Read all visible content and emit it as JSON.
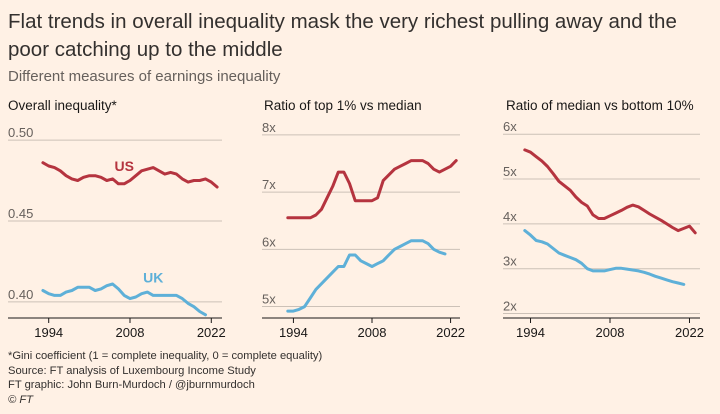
{
  "header": {
    "title": "Flat trends in overall inequality mask the very richest pulling away and the poor catching up to the middle",
    "subtitle": "Different measures of earnings inequality"
  },
  "colors": {
    "background": "#fff1e5",
    "us": "#b5343f",
    "uk": "#5eb0d8",
    "grid": "#ccc1b7",
    "tick_text": "#66605c"
  },
  "chart_data": [
    {
      "type": "line",
      "title": "Overall inequality*",
      "x_ticks": [
        1994,
        2008,
        2022
      ],
      "y_ticks": [
        "0.40",
        "0.45",
        "0.50"
      ],
      "y_tick_values": [
        0.4,
        0.45,
        0.5
      ],
      "ylim": [
        0.39,
        0.505
      ],
      "xlim": [
        1992.5,
        2023.5
      ],
      "series": [
        {
          "name": "US",
          "x": [
            1993,
            1994,
            1995,
            1996,
            1997,
            1998,
            1999,
            2000,
            2001,
            2002,
            2003,
            2004,
            2005,
            2006,
            2007,
            2008,
            2009,
            2010,
            2011,
            2012,
            2013,
            2014,
            2015,
            2016,
            2017,
            2018,
            2019,
            2020,
            2021,
            2022,
            2023
          ],
          "values": [
            0.486,
            0.484,
            0.483,
            0.481,
            0.478,
            0.476,
            0.475,
            0.477,
            0.478,
            0.478,
            0.477,
            0.475,
            0.476,
            0.473,
            0.473,
            0.475,
            0.478,
            0.481,
            0.482,
            0.483,
            0.481,
            0.479,
            0.48,
            0.479,
            0.476,
            0.474,
            0.475,
            0.475,
            0.476,
            0.474,
            0.471
          ]
        },
        {
          "name": "UK",
          "x": [
            1993,
            1994,
            1995,
            1996,
            1997,
            1998,
            1999,
            2000,
            2001,
            2002,
            2003,
            2004,
            2005,
            2006,
            2007,
            2008,
            2009,
            2010,
            2011,
            2012,
            2013,
            2014,
            2015,
            2016,
            2017,
            2018,
            2019,
            2020,
            2021
          ],
          "values": [
            0.407,
            0.405,
            0.404,
            0.404,
            0.406,
            0.407,
            0.409,
            0.409,
            0.409,
            0.407,
            0.408,
            0.41,
            0.411,
            0.408,
            0.404,
            0.402,
            0.403,
            0.405,
            0.406,
            0.404,
            0.404,
            0.404,
            0.404,
            0.404,
            0.402,
            0.399,
            0.397,
            0.394,
            0.392
          ]
        }
      ],
      "annotations": [
        {
          "text": "US",
          "series": "US",
          "x": 2007,
          "y": 0.481
        },
        {
          "text": "UK",
          "series": "UK",
          "x": 2012,
          "y": 0.412
        }
      ]
    },
    {
      "type": "line",
      "title": "Ratio of top 1% vs median",
      "x_ticks": [
        1994,
        2008,
        2022
      ],
      "y_ticks": [
        "5x",
        "6x",
        "7x",
        "8x"
      ],
      "y_tick_values": [
        5,
        6,
        7,
        8
      ],
      "ylim": [
        4.8,
        8.05
      ],
      "xlim": [
        1992.5,
        2023.5
      ],
      "series": [
        {
          "name": "US",
          "x": [
            1993,
            1994,
            1995,
            1996,
            1997,
            1998,
            1999,
            2000,
            2001,
            2002,
            2003,
            2004,
            2005,
            2006,
            2007,
            2008,
            2009,
            2010,
            2011,
            2012,
            2013,
            2014,
            2015,
            2016,
            2017,
            2018,
            2019,
            2020,
            2021,
            2022,
            2023
          ],
          "values": [
            6.55,
            6.55,
            6.55,
            6.55,
            6.55,
            6.6,
            6.7,
            6.9,
            7.1,
            7.35,
            7.35,
            7.15,
            6.85,
            6.85,
            6.85,
            6.85,
            6.9,
            7.2,
            7.3,
            7.4,
            7.45,
            7.5,
            7.55,
            7.55,
            7.55,
            7.5,
            7.4,
            7.35,
            7.4,
            7.45,
            7.55
          ]
        },
        {
          "name": "UK",
          "x": [
            1993,
            1994,
            1995,
            1996,
            1997,
            1998,
            1999,
            2000,
            2001,
            2002,
            2003,
            2004,
            2005,
            2006,
            2007,
            2008,
            2009,
            2010,
            2011,
            2012,
            2013,
            2014,
            2015,
            2016,
            2017,
            2018,
            2019,
            2020,
            2021
          ],
          "values": [
            4.92,
            4.92,
            4.95,
            5.0,
            5.15,
            5.3,
            5.4,
            5.5,
            5.6,
            5.7,
            5.7,
            5.9,
            5.9,
            5.8,
            5.75,
            5.7,
            5.75,
            5.8,
            5.9,
            6.0,
            6.05,
            6.1,
            6.15,
            6.15,
            6.15,
            6.1,
            6.0,
            5.95,
            5.92
          ]
        }
      ]
    },
    {
      "type": "line",
      "title": "Ratio of median vs bottom 10%",
      "x_ticks": [
        1994,
        2008,
        2022
      ],
      "y_ticks": [
        "2x",
        "3x",
        "4x",
        "5x",
        "6x"
      ],
      "y_tick_values": [
        2,
        3,
        4,
        5,
        6
      ],
      "ylim": [
        1.9,
        6.05
      ],
      "xlim": [
        1992.5,
        2023.5
      ],
      "series": [
        {
          "name": "US",
          "x": [
            1993,
            1994,
            1995,
            1996,
            1997,
            1998,
            1999,
            2000,
            2001,
            2002,
            2003,
            2004,
            2005,
            2006,
            2007,
            2008,
            2009,
            2010,
            2011,
            2012,
            2013,
            2014,
            2015,
            2016,
            2017,
            2018,
            2019,
            2020,
            2021,
            2022,
            2023
          ],
          "values": [
            5.65,
            5.6,
            5.5,
            5.4,
            5.28,
            5.12,
            4.95,
            4.85,
            4.75,
            4.6,
            4.48,
            4.4,
            4.2,
            4.12,
            4.12,
            4.18,
            4.24,
            4.3,
            4.37,
            4.42,
            4.38,
            4.3,
            4.22,
            4.15,
            4.08,
            4.0,
            3.92,
            3.85,
            3.9,
            3.95,
            3.8
          ]
        },
        {
          "name": "UK",
          "x": [
            1993,
            1994,
            1995,
            1996,
            1997,
            1998,
            1999,
            2000,
            2001,
            2002,
            2003,
            2004,
            2005,
            2006,
            2007,
            2008,
            2009,
            2010,
            2011,
            2012,
            2013,
            2014,
            2015,
            2016,
            2017,
            2018,
            2019,
            2020,
            2021
          ],
          "values": [
            3.85,
            3.75,
            3.63,
            3.6,
            3.55,
            3.45,
            3.35,
            3.3,
            3.25,
            3.2,
            3.12,
            3.0,
            2.95,
            2.95,
            2.95,
            2.98,
            3.01,
            3.01,
            2.99,
            2.97,
            2.95,
            2.92,
            2.88,
            2.83,
            2.79,
            2.75,
            2.71,
            2.68,
            2.65
          ]
        }
      ]
    }
  ],
  "footer": {
    "note": "*Gini coefficient (1 = complete inequality, 0 = complete equality)",
    "source": "Source: FT analysis of Luxembourg Income Study",
    "credit": "FT graphic: John Burn-Murdoch / @jburnmurdoch",
    "copyright": "© FT"
  }
}
